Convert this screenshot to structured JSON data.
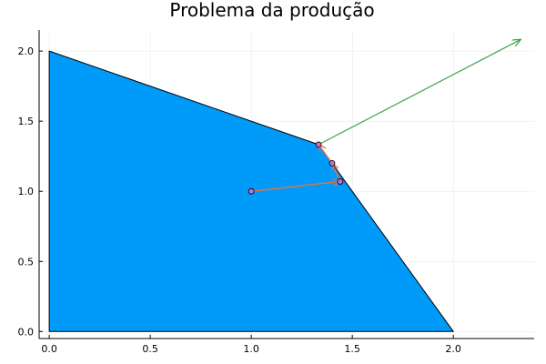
{
  "chart_data": {
    "type": "line",
    "title": "Problema da produção",
    "xlabel": "",
    "ylabel": "",
    "xlim": [
      -0.05,
      2.4
    ],
    "ylim": [
      -0.05,
      2.15
    ],
    "x_ticks": [
      0.0,
      0.5,
      1.0,
      1.5,
      2.0
    ],
    "x_tick_labels": [
      "0.0",
      "0.5",
      "1.0",
      "1.5",
      "2.0"
    ],
    "y_ticks": [
      0.0,
      0.5,
      1.0,
      1.5,
      2.0
    ],
    "y_tick_labels": [
      "0.0",
      "0.5",
      "1.0",
      "1.5",
      "2.0"
    ],
    "grid": true,
    "legend": "none",
    "feasible_region": {
      "vertices": [
        [
          0,
          0
        ],
        [
          0,
          2
        ],
        [
          1.333,
          1.333
        ],
        [
          2,
          0
        ]
      ],
      "fill_color": "#009af9",
      "edge_color": "#000000"
    },
    "path": {
      "color": "#e26f46",
      "points": [
        [
          1.0,
          1.0
        ],
        [
          1.44,
          1.07
        ],
        [
          1.4,
          1.2
        ],
        [
          1.333,
          1.333
        ]
      ]
    },
    "markers": {
      "color": "#c271d2",
      "points": [
        [
          1.0,
          1.0
        ],
        [
          1.44,
          1.07
        ],
        [
          1.4,
          1.2
        ],
        [
          1.333,
          1.333
        ]
      ]
    },
    "direction_arrow": {
      "color": "#3da44d",
      "from": [
        1.333,
        1.333
      ],
      "to": [
        2.33,
        2.08
      ]
    }
  }
}
